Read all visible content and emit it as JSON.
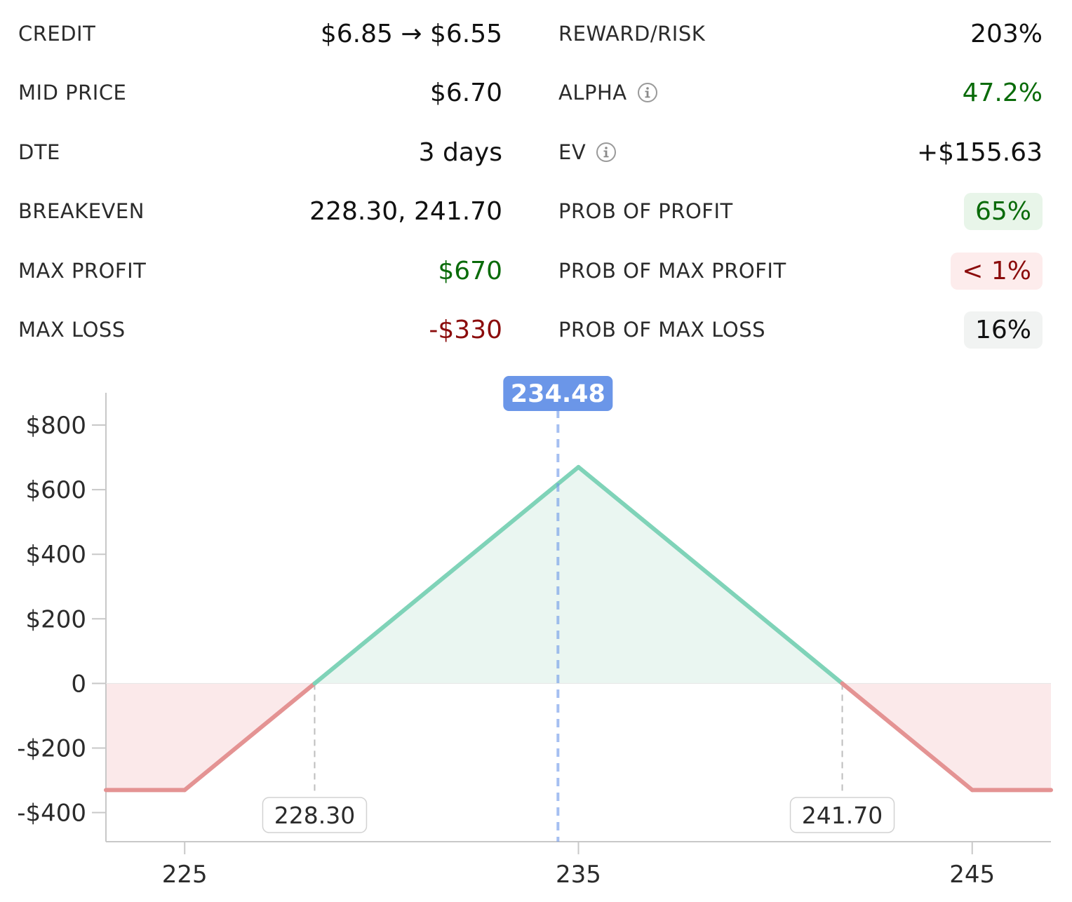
{
  "stats_left": [
    {
      "label": "CREDIT",
      "value": "$6.85 → $6.55",
      "tone": "neutral"
    },
    {
      "label": "MID PRICE",
      "value": "$6.70",
      "tone": "neutral"
    },
    {
      "label": "DTE",
      "value": "3 days",
      "tone": "neutral"
    },
    {
      "label": "BREAKEVEN",
      "value": "228.30, 241.70",
      "tone": "neutral"
    },
    {
      "label": "MAX PROFIT",
      "value": "$670",
      "tone": "positive"
    },
    {
      "label": "MAX LOSS",
      "value": "-$330",
      "tone": "negative"
    }
  ],
  "stats_right": [
    {
      "label": "REWARD/RISK",
      "value": "203%",
      "tone": "neutral",
      "info": false,
      "badge": false
    },
    {
      "label": "ALPHA",
      "value": "47.2%",
      "tone": "positive",
      "info": true,
      "badge": false
    },
    {
      "label": "EV",
      "value": "+$155.63",
      "tone": "neutral",
      "info": true,
      "badge": false
    },
    {
      "label": "PROB OF PROFIT",
      "value": "65%",
      "tone": "positive",
      "info": false,
      "badge": true
    },
    {
      "label": "PROB OF MAX PROFIT",
      "value": "< 1%",
      "tone": "negative",
      "info": false,
      "badge": true
    },
    {
      "label": "PROB OF MAX LOSS",
      "value": "16%",
      "tone": "neutral",
      "info": false,
      "badge": true
    }
  ],
  "colors": {
    "positive_text": "#0a6b0a",
    "negative_text": "#8b0c0c",
    "positive_badge_bg": "#e8f5e9",
    "negative_badge_bg": "#fdecec",
    "neutral_badge_bg": "#f1f3f2",
    "profit_line": "#7fd3b8",
    "profit_fill": "#eaf6f1",
    "loss_line": "#e49393",
    "loss_fill": "#fbe9ea",
    "current_price": "#6b96e8",
    "axis": "#c8c8c8"
  },
  "icons": {
    "info": "info-circle-icon"
  },
  "chart_data": {
    "type": "line",
    "x": [
      223,
      225,
      228.3,
      235,
      241.7,
      245,
      247
    ],
    "y": [
      -330,
      -330,
      0,
      670,
      0,
      -330,
      -330
    ],
    "xlim": [
      223,
      247
    ],
    "ylim": [
      -490,
      900
    ],
    "x_ticks": [
      225,
      235,
      245
    ],
    "x_tick_labels": [
      "225",
      "235",
      "245"
    ],
    "y_ticks": [
      800,
      600,
      400,
      200,
      0,
      -200,
      -400
    ],
    "y_tick_labels": [
      "$800",
      "$600",
      "$400",
      "$200",
      "0",
      "-$200",
      "-$400"
    ],
    "breakevens": [
      228.3,
      241.7
    ],
    "breakeven_labels": [
      "228.30",
      "241.70"
    ],
    "current_price": 234.48,
    "current_price_label": "234.48",
    "grid": false,
    "legend": "none"
  }
}
